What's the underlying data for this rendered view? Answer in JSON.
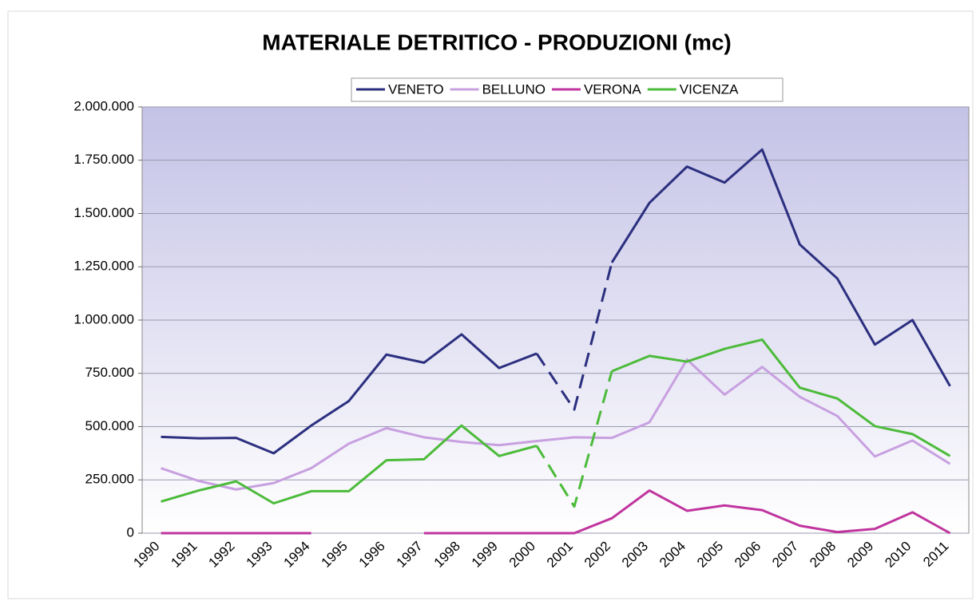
{
  "chart_data": {
    "type": "line",
    "title": "MATERIALE DETRITICO - PRODUZIONI (mc)",
    "categories": [
      "1990",
      "1991",
      "1992",
      "1993",
      "1994",
      "1995",
      "1996",
      "1997",
      "1998",
      "1999",
      "2000",
      "2001",
      "2002",
      "2003",
      "2004",
      "2005",
      "2006",
      "2007",
      "2008",
      "2009",
      "2010",
      "2011"
    ],
    "series": [
      {
        "name": "VENETO",
        "color": "#2b2f7f",
        "dashed": [
          10,
          11
        ],
        "values": [
          452000,
          445000,
          447000,
          375000,
          505000,
          620000,
          838000,
          800000,
          933000,
          775000,
          843000,
          580000,
          1270000,
          1550000,
          1720000,
          1645000,
          1800000,
          1355000,
          1195000,
          885000,
          1000000,
          690000
        ]
      },
      {
        "name": "BELLUNO",
        "color": "#c8a0e0",
        "dashed": [],
        "values": [
          305000,
          245000,
          205000,
          235000,
          305000,
          420000,
          493000,
          450000,
          428000,
          413000,
          432000,
          450000,
          447000,
          520000,
          815000,
          650000,
          780000,
          640000,
          550000,
          360000,
          435000,
          325000
        ]
      },
      {
        "name": "VERONA",
        "color": "#c0349e",
        "dashed": [],
        "values": [
          0,
          0,
          0,
          0,
          0,
          null,
          null,
          0,
          0,
          0,
          0,
          0,
          70000,
          200000,
          105000,
          130000,
          108000,
          35000,
          5000,
          20000,
          98000,
          0
        ]
      },
      {
        "name": "VICENZA",
        "color": "#4cbb3a",
        "dashed": [
          10,
          11
        ],
        "values": [
          148000,
          200000,
          243000,
          140000,
          197000,
          197000,
          342000,
          347000,
          505000,
          362000,
          410000,
          125000,
          760000,
          832000,
          805000,
          865000,
          908000,
          683000,
          632000,
          502000,
          465000,
          362000
        ]
      }
    ],
    "ylim": [
      0,
      2000000
    ],
    "yticks": [
      0,
      {
        "value": 250000,
        "label": "250.000"
      },
      {
        "value": 500000,
        "label": "500.000"
      },
      {
        "value": 750000,
        "label": "750.000"
      },
      {
        "value": 1000000,
        "label": "1.000.000"
      },
      {
        "value": 1250000,
        "label": "1.250.000"
      },
      {
        "value": 1500000,
        "label": "1.500.000"
      },
      {
        "value": 1750000,
        "label": "1.750.000"
      },
      {
        "value": 2000000,
        "label": "2.000.000"
      }
    ],
    "grid": true,
    "legend": "top"
  }
}
